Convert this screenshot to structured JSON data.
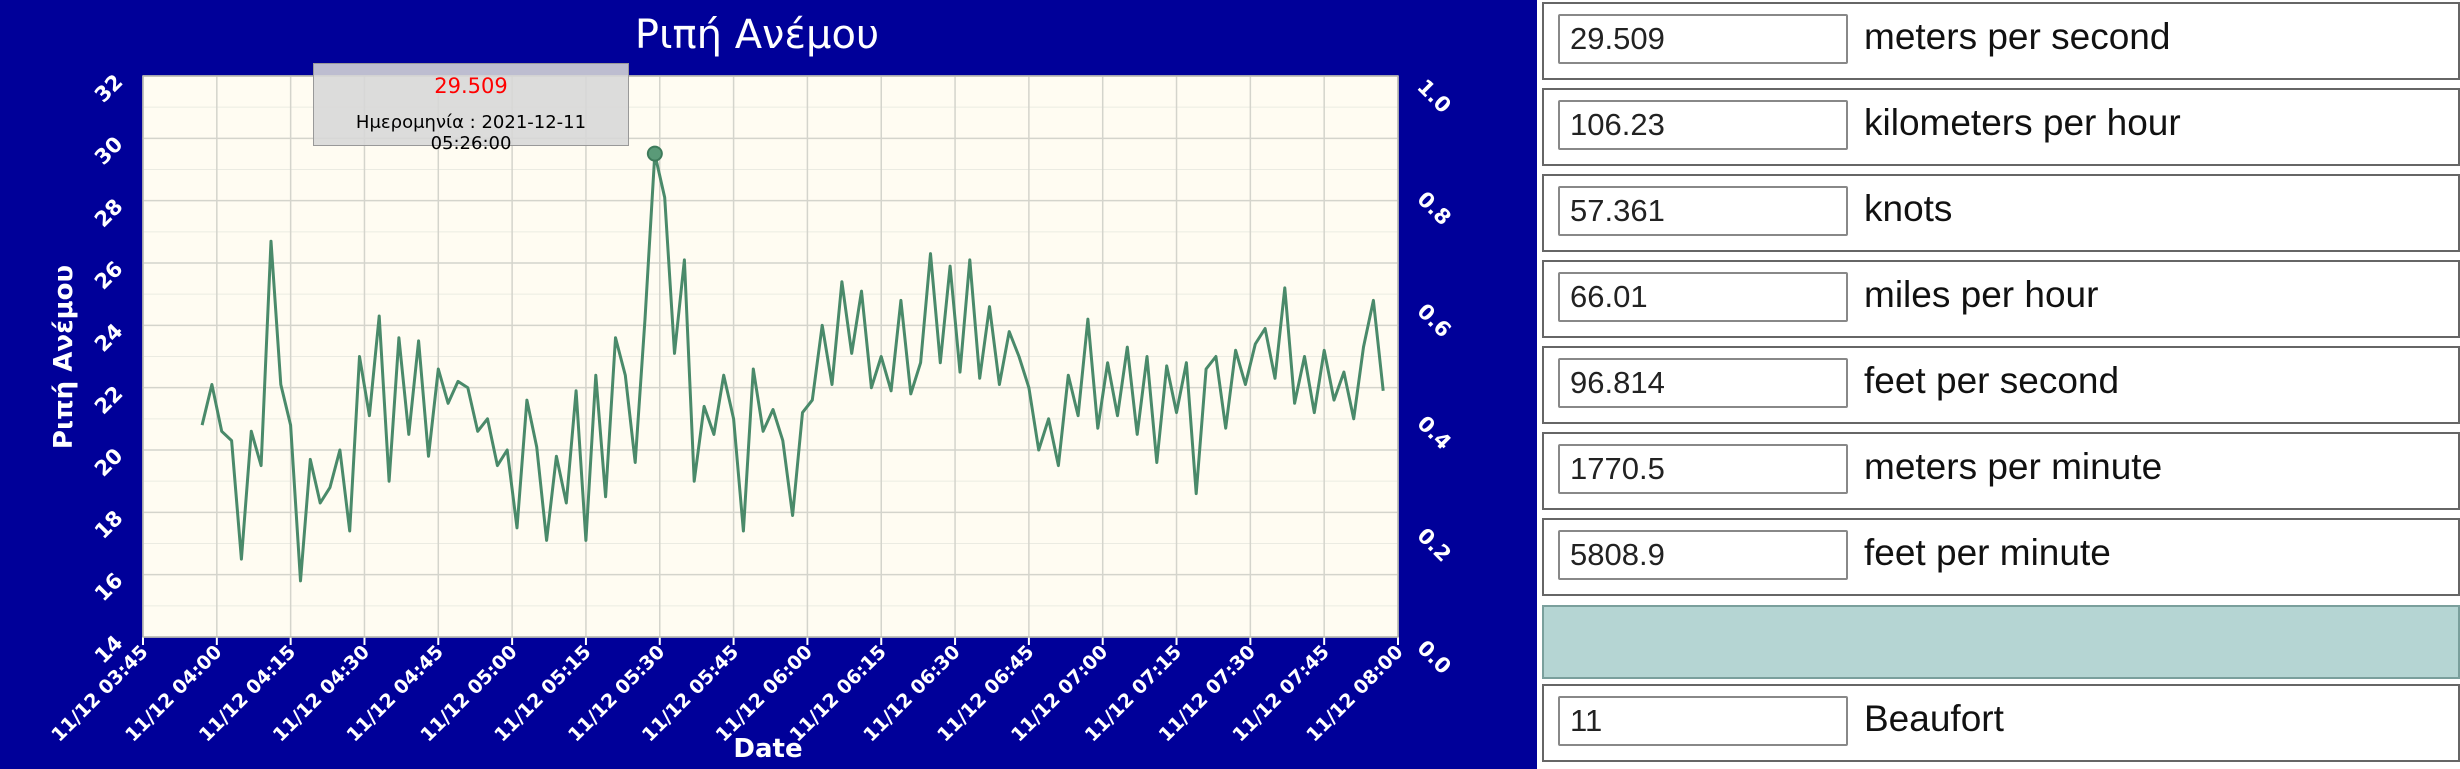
{
  "chart_data": {
    "type": "line",
    "title": "Ριπή Ανέμου",
    "xlabel": "Date",
    "ylabel": "Ριπή Ανέμου",
    "ylim": [
      14,
      32
    ],
    "yticks": [
      "14",
      "16",
      "18",
      "20",
      "22",
      "24",
      "26",
      "28",
      "30",
      "32"
    ],
    "y2lim": [
      0,
      1
    ],
    "y2ticks": [
      "0.0",
      "0.2",
      "0.4",
      "0.6",
      "0.8",
      "1.0"
    ],
    "xticks": [
      "11/12 03:45",
      "11/12 04:00",
      "11/12 04:15",
      "11/12 04:30",
      "11/12 04:45",
      "11/12 05:00",
      "11/12 05:15",
      "11/12 05:30",
      "11/12 05:45",
      "11/12 06:00",
      "11/12 06:15",
      "11/12 06:30",
      "11/12 06:45",
      "11/12 07:00",
      "11/12 07:15",
      "11/12 07:30",
      "11/12 07:45",
      "11/12 08:00"
    ],
    "xlim_minutes": [
      0,
      255
    ],
    "grid": true,
    "colors": {
      "line": "#4a8a6a",
      "plot_bg": "#fffcf2",
      "grid": "#d4d4cc",
      "text": "#ffffff"
    },
    "series": [
      {
        "x": [
          12,
          14,
          16,
          18,
          20,
          22,
          24,
          26,
          28,
          30,
          32,
          34,
          36,
          38,
          40,
          42,
          44,
          46,
          48,
          50,
          52,
          54,
          56,
          58,
          60,
          62,
          64,
          66,
          68,
          70,
          72,
          74,
          76,
          78,
          80,
          82,
          84,
          86,
          88,
          90,
          92,
          94,
          96,
          98,
          100,
          102,
          104,
          106,
          108,
          110,
          112,
          114,
          116,
          118,
          120,
          122,
          124,
          126,
          128,
          130,
          132,
          134,
          136,
          138,
          140,
          142,
          144,
          146,
          148,
          150,
          152,
          154,
          156,
          158,
          160,
          162,
          164,
          166,
          168,
          170,
          172,
          174,
          176,
          178,
          180,
          182,
          184,
          186,
          188,
          190,
          192,
          194,
          196,
          198,
          200,
          202,
          204,
          206,
          208,
          210,
          212,
          214,
          216,
          218,
          220,
          222,
          224,
          226,
          228,
          230,
          232,
          234,
          236,
          238,
          240,
          242,
          244,
          246,
          248,
          250,
          252
        ],
        "y": [
          20.8,
          22.1,
          20.6,
          20.3,
          16.5,
          20.6,
          19.5,
          26.7,
          22.1,
          20.8,
          15.8,
          19.7,
          18.3,
          18.8,
          20.0,
          17.4,
          23.0,
          21.1,
          24.3,
          19.0,
          23.6,
          20.5,
          23.5,
          19.8,
          22.6,
          21.5,
          22.2,
          22.0,
          20.6,
          21.0,
          19.5,
          20.0,
          17.5,
          21.6,
          20.1,
          17.1,
          19.8,
          18.3,
          21.9,
          17.1,
          22.4,
          18.5,
          23.6,
          22.4,
          19.6,
          24.2,
          29.5,
          28.1,
          23.1,
          26.1,
          19.0,
          21.4,
          20.5,
          22.4,
          21.0,
          17.4,
          22.6,
          20.6,
          21.3,
          20.3,
          17.9,
          21.2,
          21.6,
          24.0,
          22.1,
          25.4,
          23.1,
          25.1,
          22.0,
          23.0,
          21.9,
          24.8,
          21.8,
          22.8,
          26.3,
          22.8,
          25.9,
          22.5,
          26.1,
          22.3,
          24.6,
          22.1,
          23.8,
          23.0,
          22.0,
          20.0,
          21.0,
          19.5,
          22.4,
          21.1,
          24.2,
          20.7,
          22.8,
          21.1,
          23.3,
          20.5,
          23.0,
          19.6,
          22.7,
          21.2,
          22.8,
          18.6,
          22.6,
          23.0,
          20.7,
          23.2,
          22.1,
          23.4,
          23.9,
          22.3,
          25.2,
          21.5,
          23.0,
          21.2,
          23.2,
          21.6,
          22.5,
          21.0,
          23.3,
          24.8,
          21.9
        ]
      }
    ],
    "highlight": {
      "x": 104,
      "y": 29.509
    },
    "tooltip": {
      "value": "29.509",
      "date_text": "Ημερομηνία : 2021-12-11 05:26:00"
    }
  },
  "conversions": [
    {
      "value": "29.509",
      "unit": "meters per second"
    },
    {
      "value": "106.23",
      "unit": "kilometers per hour"
    },
    {
      "value": "57.361",
      "unit": "knots"
    },
    {
      "value": "66.01",
      "unit": "miles per hour"
    },
    {
      "value": "96.814",
      "unit": "feet per second"
    },
    {
      "value": "1770.5",
      "unit": "meters per minute"
    },
    {
      "value": "5808.9",
      "unit": "feet per minute"
    }
  ],
  "beaufort": {
    "value": "11",
    "unit": "Beaufort"
  }
}
